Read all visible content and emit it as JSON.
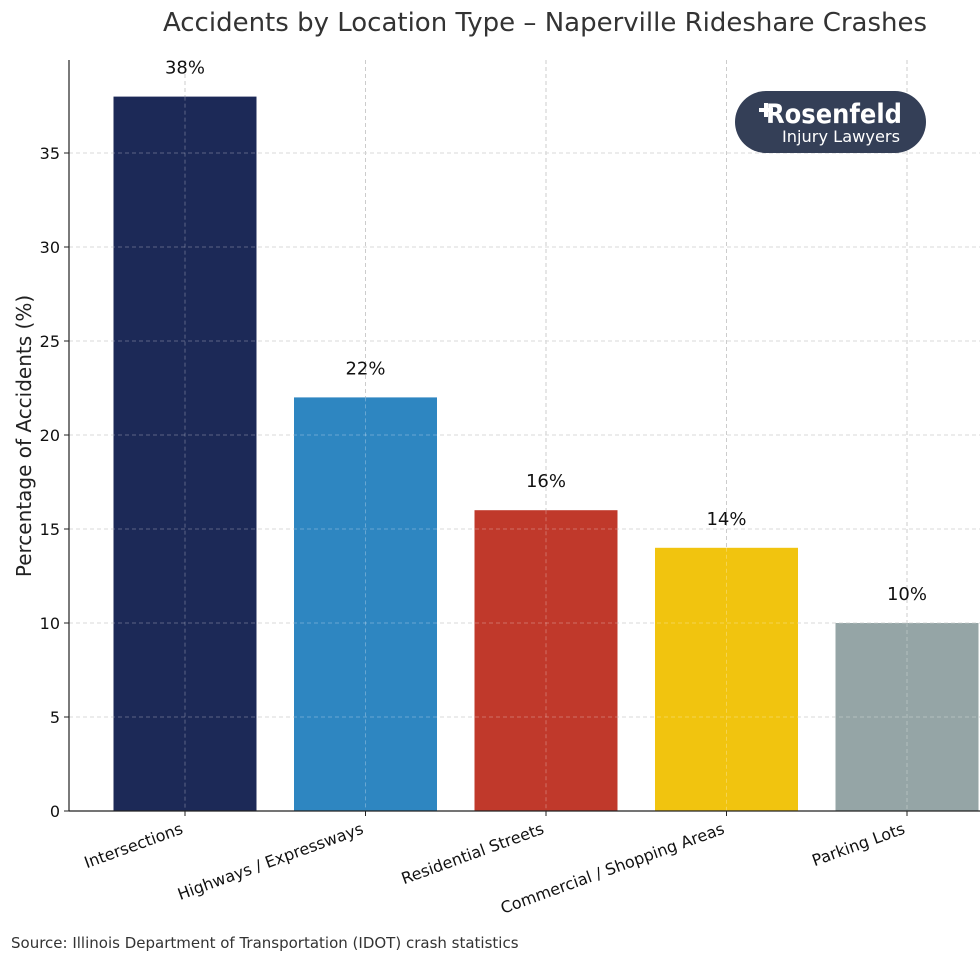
{
  "chart_data": {
    "type": "bar",
    "title": "Accidents by Location Type – Naperville Rideshare Crashes",
    "xlabel": "",
    "ylabel": "Percentage of Accidents (%)",
    "categories": [
      "Intersections",
      "Highways / Expressways",
      "Residential Streets",
      "Commercial / Shopping Areas",
      "Parking Lots"
    ],
    "values": [
      38,
      22,
      16,
      14,
      10
    ],
    "data_labels": [
      "38%",
      "22%",
      "16%",
      "14%",
      "10%"
    ],
    "colors": [
      "#1c2957",
      "#2e86c1",
      "#c0392b",
      "#f1c40f",
      "#95a5a6"
    ],
    "ylim": [
      0,
      40
    ],
    "yticks": [
      0,
      5,
      10,
      15,
      20,
      25,
      30,
      35
    ],
    "grid": true,
    "legend": "none"
  },
  "logo": {
    "name": "Rosenfeld",
    "tagline": "Injury Lawyers",
    "color": "#343f57"
  },
  "source": "Source: Illinois Department of Transportation (IDOT) crash statistics"
}
